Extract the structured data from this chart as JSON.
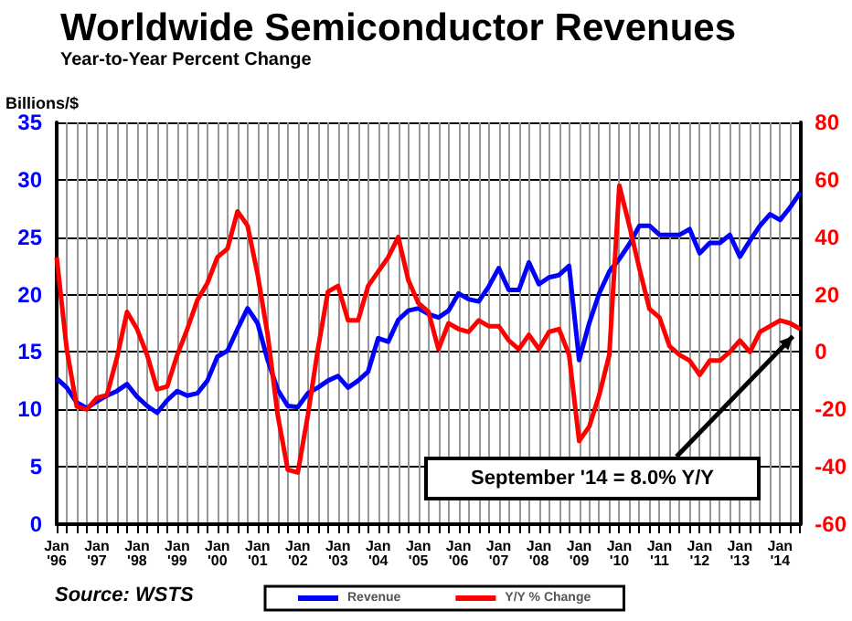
{
  "chart_data": {
    "type": "line",
    "title": "Worldwide Semiconductor Revenues",
    "subtitle": "Year-to-Year Percent Change",
    "ylabel": "Billions/$",
    "categories": [
      "Jan '96",
      null,
      null,
      null,
      "Jan '97",
      null,
      null,
      null,
      "Jan '98",
      null,
      null,
      null,
      "Jan '99",
      null,
      null,
      null,
      "Jan '00",
      null,
      null,
      null,
      "Jan '01",
      null,
      null,
      null,
      "Jan '02",
      null,
      null,
      null,
      "Jan '03",
      null,
      null,
      null,
      "Jan '04",
      null,
      null,
      null,
      "Jan '05",
      null,
      null,
      null,
      "Jan '06",
      null,
      null,
      null,
      "Jan '07",
      null,
      null,
      null,
      "Jan '08",
      null,
      null,
      null,
      "Jan '09",
      null,
      null,
      null,
      "Jan '10",
      null,
      null,
      null,
      "Jan '11",
      null,
      null,
      null,
      "Jan '12",
      null,
      null,
      null,
      "Jan '13",
      null,
      null,
      null,
      "Jan '14",
      null,
      null
    ],
    "series": [
      {
        "name": "Revenue",
        "color": "#0000ff",
        "values": [
          12.7,
          11.9,
          10.6,
          10.1,
          10.7,
          11.2,
          11.6,
          12.2,
          11.1,
          10.3,
          9.7,
          10.8,
          11.6,
          11.2,
          11.4,
          12.5,
          14.6,
          15.1,
          17.0,
          18.8,
          17.5,
          14.3,
          11.7,
          10.3,
          10.2,
          11.4,
          11.9,
          12.5,
          12.9,
          11.9,
          12.5,
          13.3,
          16.2,
          15.9,
          17.8,
          18.6,
          18.8,
          18.3,
          18.0,
          18.6,
          20.1,
          19.6,
          19.4,
          20.7,
          22.3,
          20.4,
          20.4,
          22.8,
          20.9,
          21.5,
          21.7,
          22.5,
          14.3,
          17.5,
          20.1,
          22.0,
          23.1,
          24.4,
          26.0,
          26.0,
          25.2,
          25.2,
          25.2,
          25.7,
          23.6,
          24.5,
          24.5,
          25.2,
          23.3,
          24.7,
          26.0,
          27.0,
          26.5,
          27.6,
          28.9
        ]
      },
      {
        "name": "Y/Y % Change",
        "color": "#ff0000",
        "axis": "y2",
        "values": [
          33,
          1,
          -19,
          -20,
          -16,
          -15,
          -2,
          14,
          8,
          -1,
          -13,
          -12,
          -1,
          8,
          18,
          24,
          33,
          36,
          49,
          44,
          27,
          6,
          -22,
          -41,
          -42,
          -22,
          1,
          21,
          23,
          11,
          11,
          23,
          28,
          33,
          40,
          25,
          17,
          14,
          1,
          10,
          8,
          7,
          11,
          9,
          9,
          4,
          1,
          6,
          1,
          7,
          8,
          -1,
          -31,
          -26,
          -15,
          -1,
          58,
          44,
          29,
          15,
          12,
          2,
          -1,
          -3,
          -8,
          -3,
          -3,
          0,
          4,
          0,
          7,
          9,
          11,
          10,
          8
        ]
      }
    ],
    "ylim": [
      0,
      35
    ],
    "yticks": [
      0,
      5,
      10,
      15,
      20,
      25,
      30,
      35
    ],
    "y2lim": [
      -60,
      80
    ],
    "y2ticks": [
      -60,
      -40,
      -20,
      0,
      20,
      40,
      60,
      80
    ],
    "grid": true,
    "legend": "bottom",
    "marker": "none",
    "line_style": "solid",
    "annotations": [
      "September '14 = 8.0% Y/Y",
      "Source: WSTS"
    ]
  }
}
